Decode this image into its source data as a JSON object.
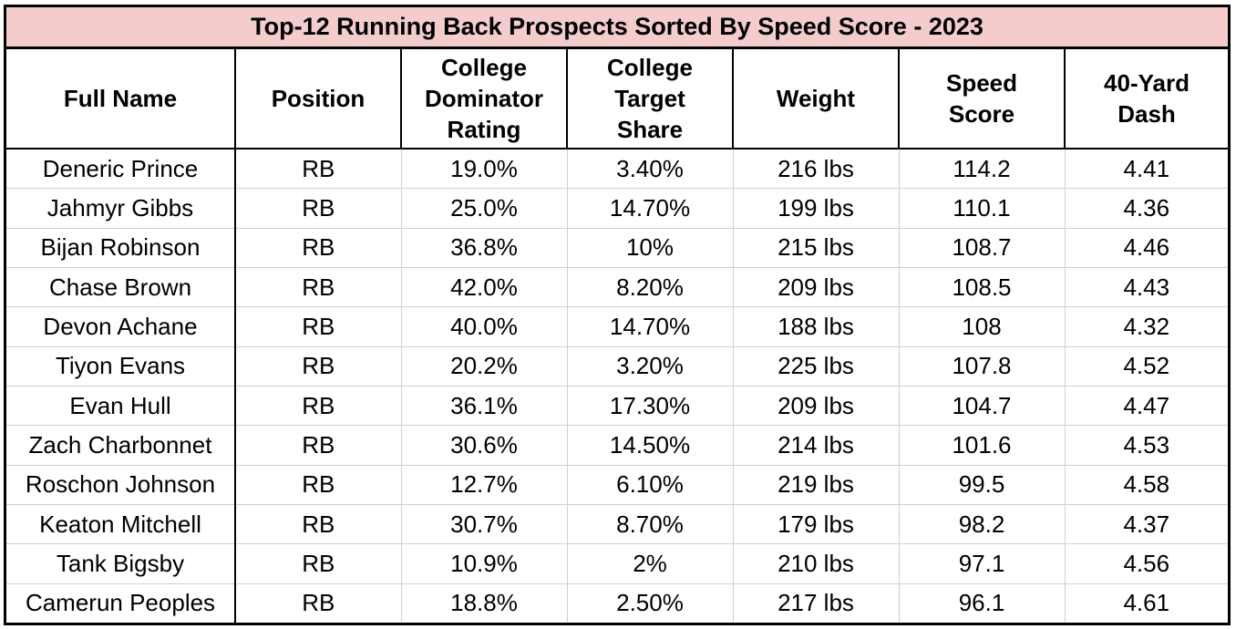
{
  "table": {
    "title": "Top-12 Running Back Prospects Sorted By Speed Score - 2023",
    "headers": [
      [
        "Full Name"
      ],
      [
        "Position"
      ],
      [
        "College",
        "Dominator",
        "Rating"
      ],
      [
        "College",
        "Target",
        "Share"
      ],
      [
        "Weight"
      ],
      [
        "Speed",
        "Score"
      ],
      [
        "40-Yard",
        "Dash"
      ]
    ],
    "rows": [
      [
        "Deneric Prince",
        "RB",
        "19.0%",
        "3.40%",
        "216 lbs",
        "114.2",
        "4.41"
      ],
      [
        "Jahmyr Gibbs",
        "RB",
        "25.0%",
        "14.70%",
        "199 lbs",
        "110.1",
        "4.36"
      ],
      [
        "Bijan Robinson",
        "RB",
        "36.8%",
        "10%",
        "215 lbs",
        "108.7",
        "4.46"
      ],
      [
        "Chase Brown",
        "RB",
        "42.0%",
        "8.20%",
        "209 lbs",
        "108.5",
        "4.43"
      ],
      [
        "Devon Achane",
        "RB",
        "40.0%",
        "14.70%",
        "188 lbs",
        "108",
        "4.32"
      ],
      [
        "Tiyon Evans",
        "RB",
        "20.2%",
        "3.20%",
        "225 lbs",
        "107.8",
        "4.52"
      ],
      [
        "Evan Hull",
        "RB",
        "36.1%",
        "17.30%",
        "209 lbs",
        "104.7",
        "4.47"
      ],
      [
        "Zach Charbonnet",
        "RB",
        "30.6%",
        "14.50%",
        "214 lbs",
        "101.6",
        "4.53"
      ],
      [
        "Roschon Johnson",
        "RB",
        "12.7%",
        "6.10%",
        "219 lbs",
        "99.5",
        "4.58"
      ],
      [
        "Keaton Mitchell",
        "RB",
        "30.7%",
        "8.70%",
        "179 lbs",
        "98.2",
        "4.37"
      ],
      [
        "Tank Bigsby",
        "RB",
        "10.9%",
        "2%",
        "210 lbs",
        "97.1",
        "4.56"
      ],
      [
        "Camerun Peoples",
        "RB",
        "18.8%",
        "2.50%",
        "217 lbs",
        "96.1",
        "4.61"
      ]
    ]
  },
  "colors": {
    "title_background": "#f4cccc",
    "border": "#000000",
    "inner_gridline": "#cfcfcf"
  }
}
